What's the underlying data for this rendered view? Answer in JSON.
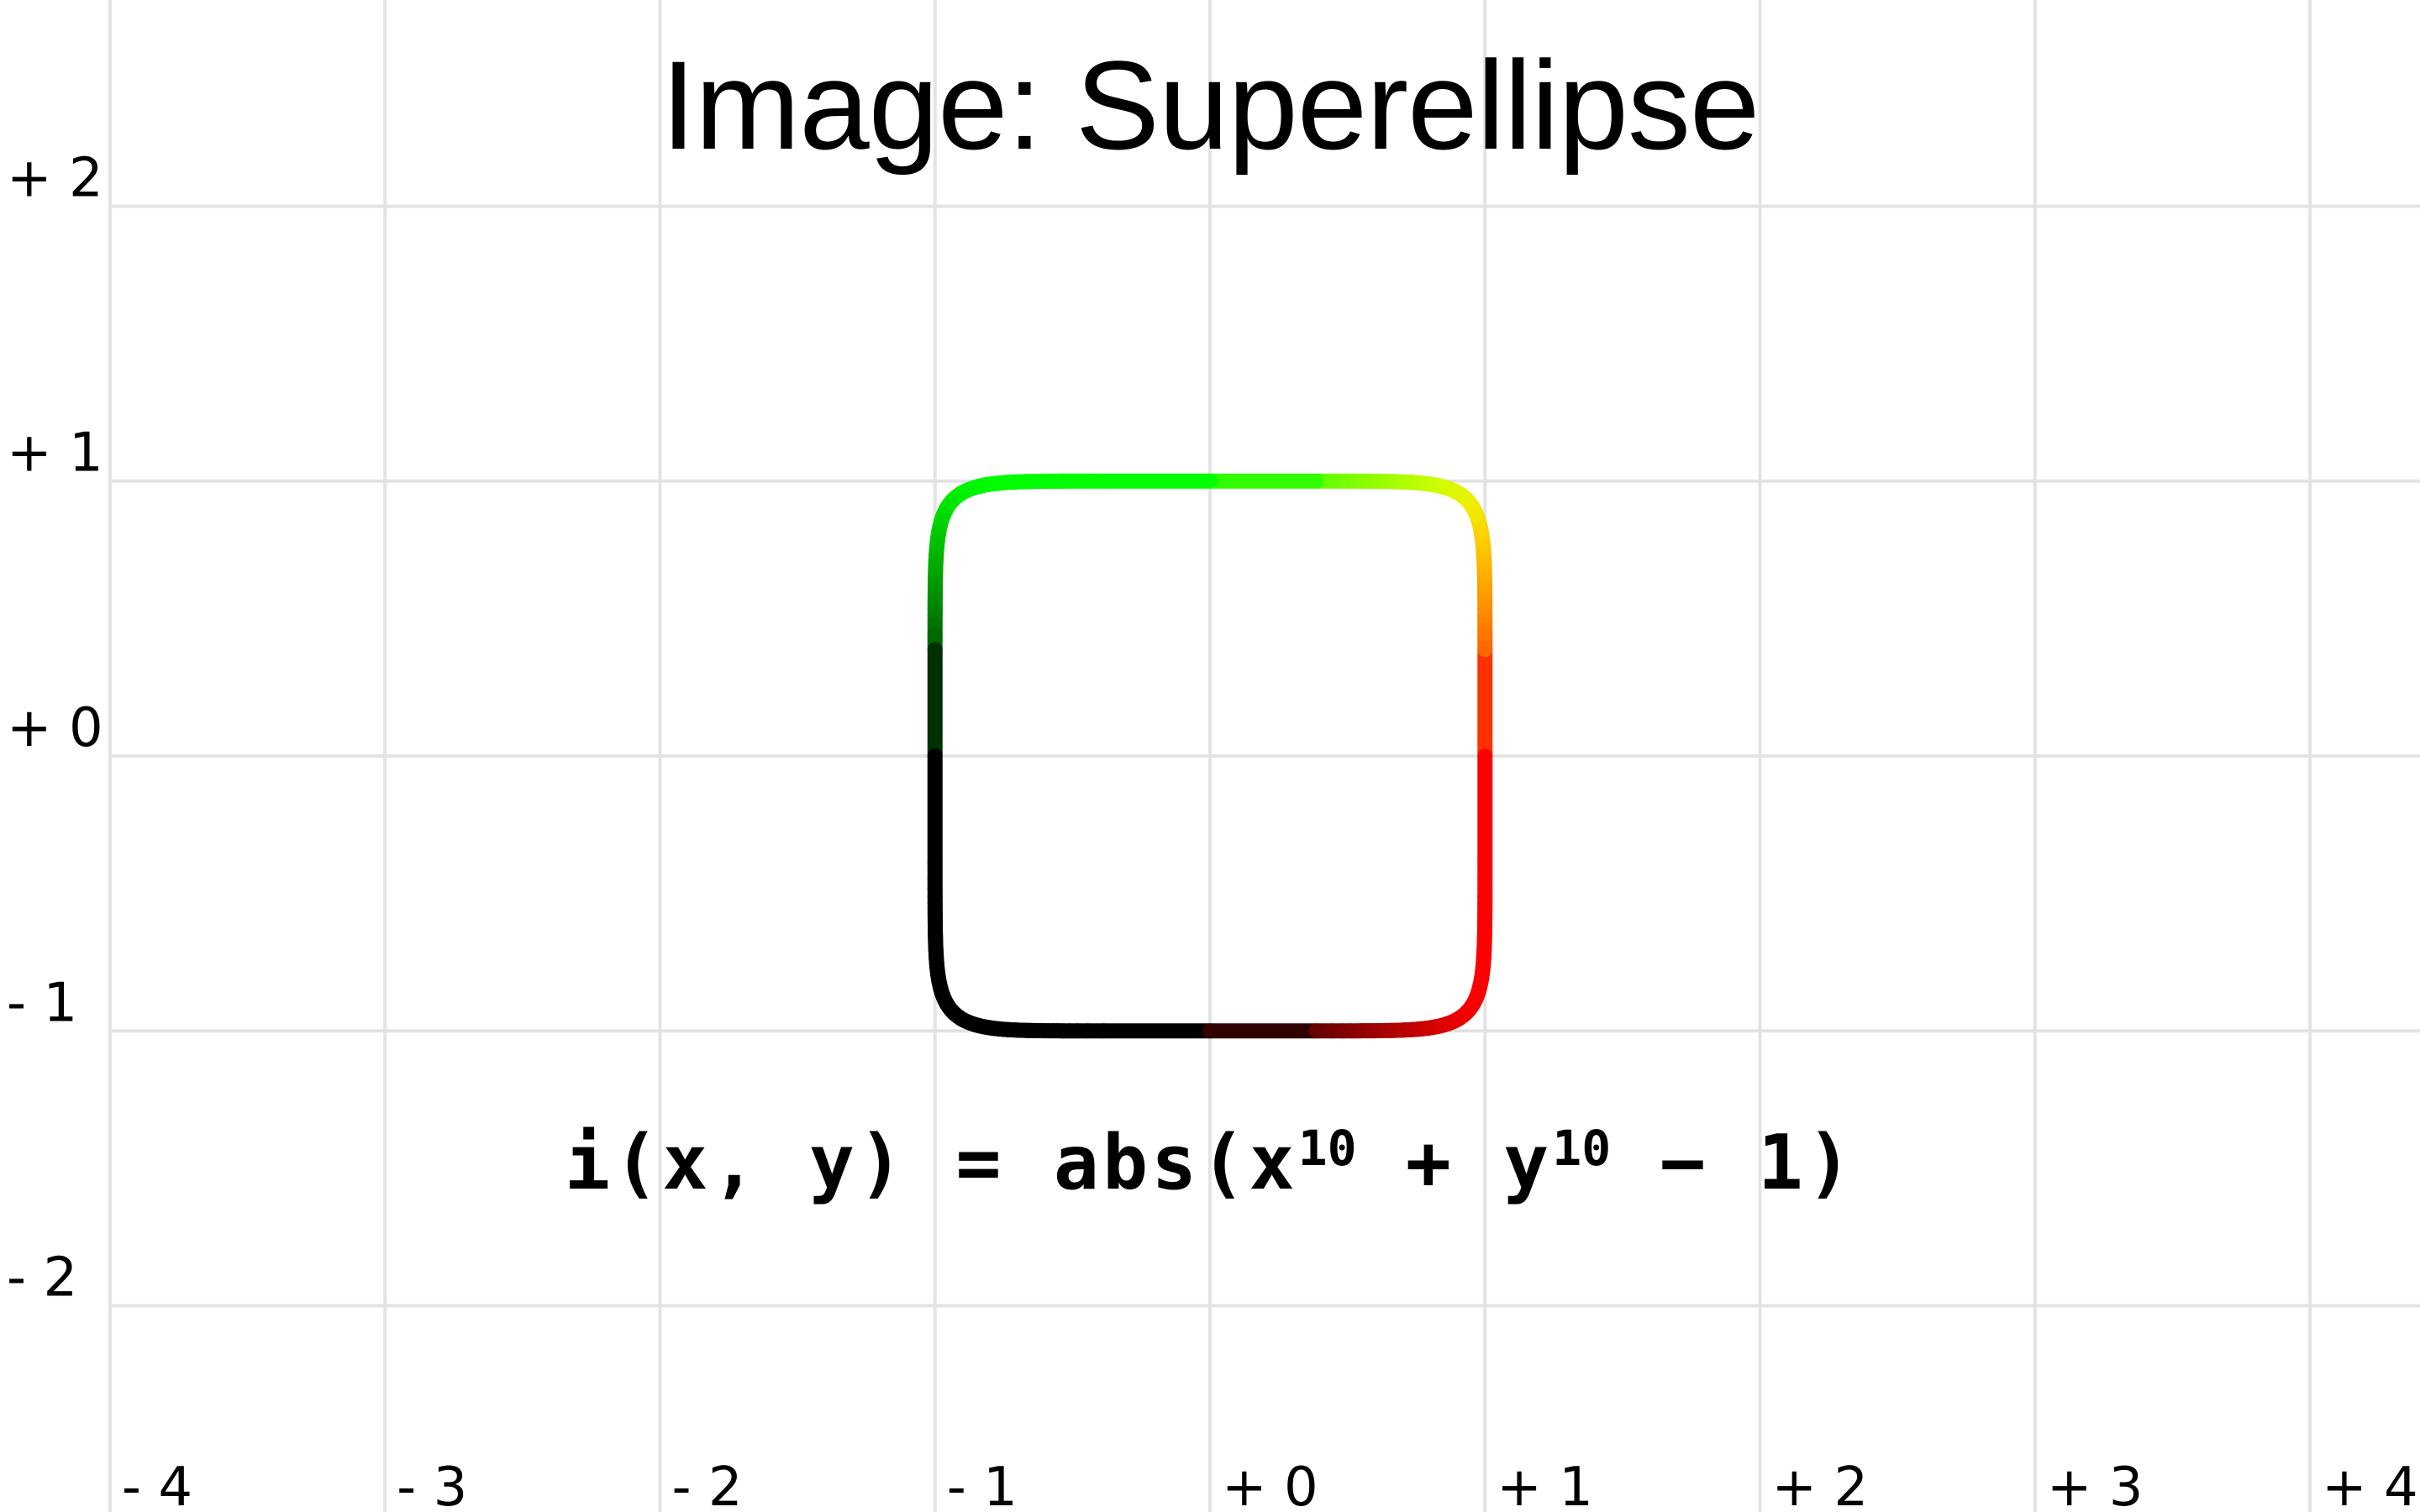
{
  "title": "Image: Superellipse",
  "formula": {
    "prefix": "i(x, y) = abs(x",
    "exp1": "10",
    "middle": " + y",
    "exp2": "10",
    "suffix": " − 1)"
  },
  "chart_data": {
    "type": "line",
    "title": "Image: Superellipse",
    "xlabel": "",
    "ylabel": "",
    "xlim": [
      -4.4,
      4.4
    ],
    "ylim": [
      -2.75,
      2.75
    ],
    "grid": true,
    "x_ticks": [
      -4,
      -3,
      -2,
      -1,
      0,
      1,
      2,
      3,
      4
    ],
    "x_tick_labels": [
      "- 4",
      "- 3",
      "- 2",
      "- 1",
      "+ 0",
      "+ 1",
      "+ 2",
      "+ 3",
      "+ 4"
    ],
    "y_ticks": [
      2,
      1,
      0,
      -1,
      -2
    ],
    "y_tick_labels": [
      "+ 2",
      "+ 1",
      "+ 0",
      "- 1",
      "- 2"
    ],
    "series": [
      {
        "curve": "x^10 + y^10 = 1",
        "exponent": 10,
        "color_gradient": {
          "+x": "#ff0000",
          "+y": "#00ff00",
          "-x": "#000000",
          "-y": "#000000"
        }
      }
    ]
  },
  "colors": {
    "grid": "#e3e3e3",
    "text": "#000000",
    "background": "#ffffff"
  }
}
